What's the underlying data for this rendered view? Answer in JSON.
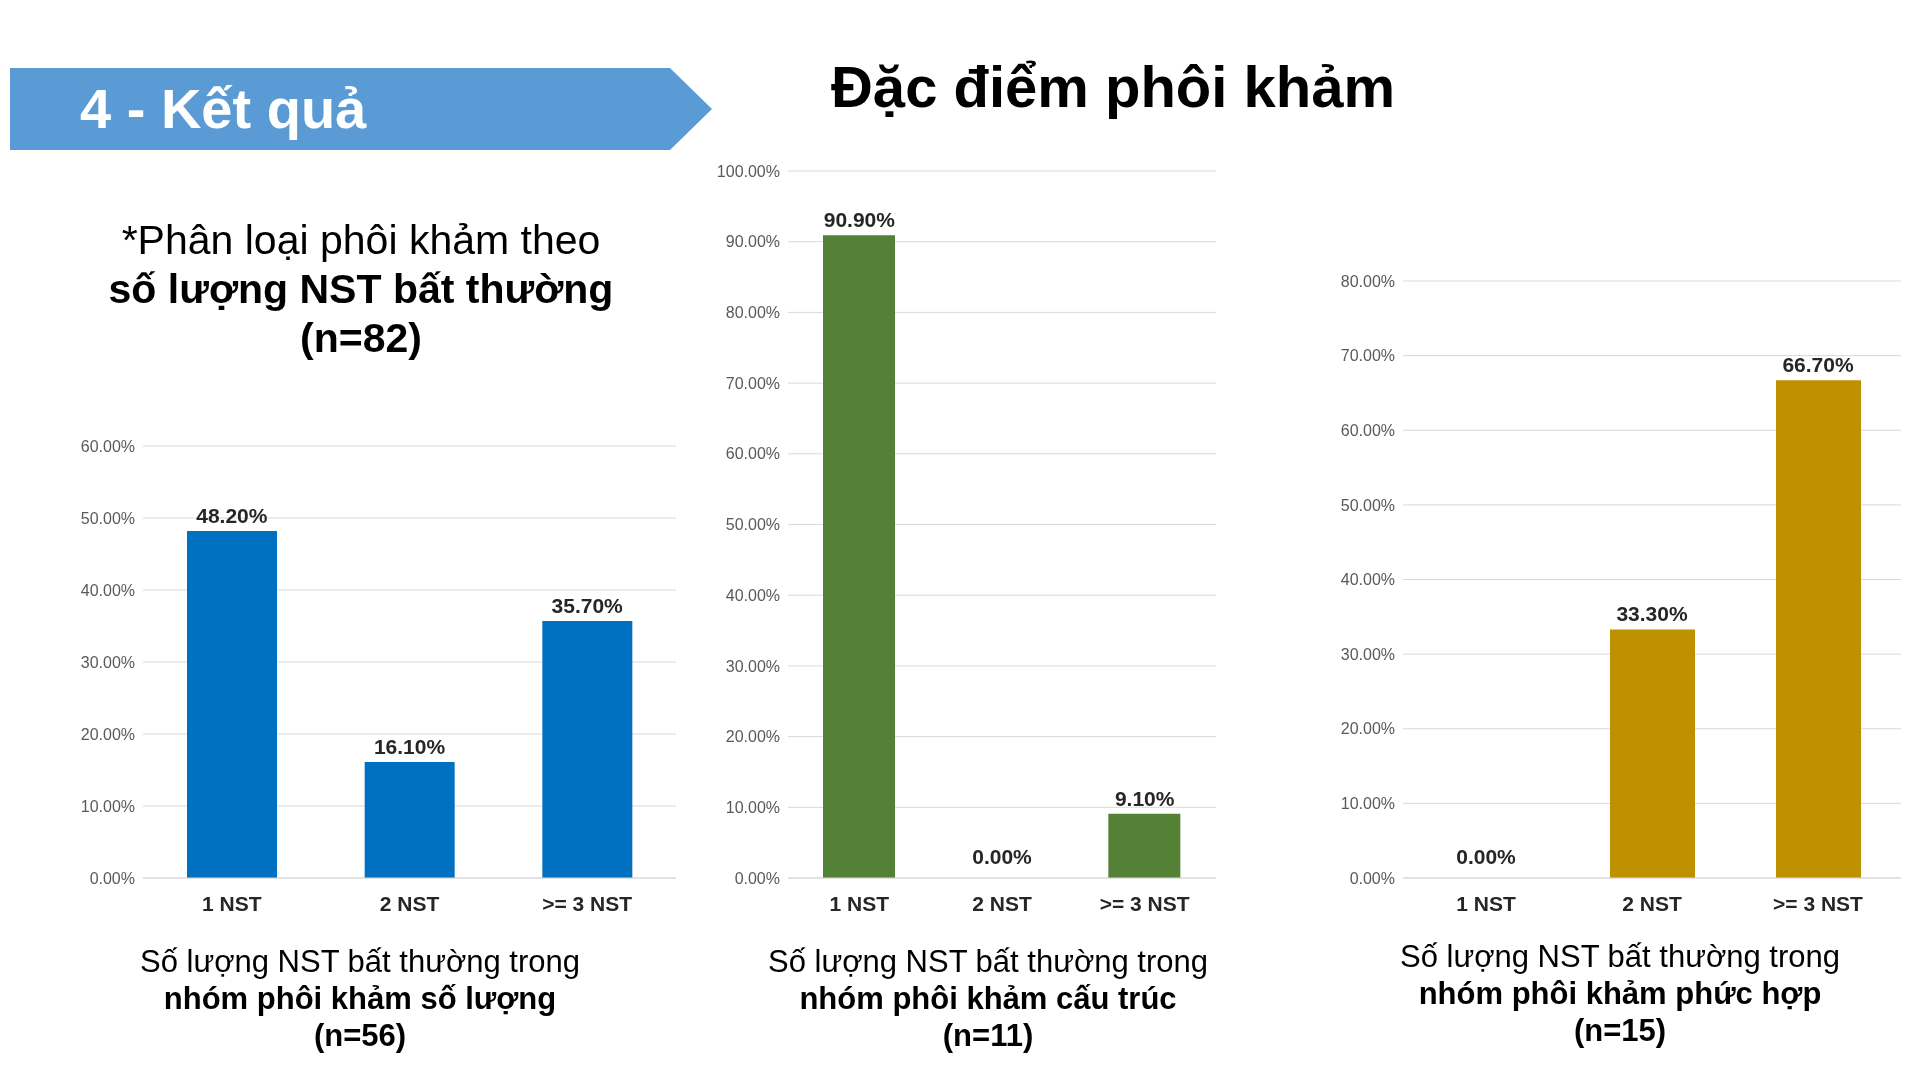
{
  "chart_data": [
    {
      "type": "bar",
      "annotations": [
        "4 - Kết quả",
        "*Phân loại phôi khảm theo\nsố lượng NST bất thường\n(n=82)"
      ],
      "categories": [
        "1 NST",
        "2 NST",
        ">= 3 NST"
      ],
      "values": [
        48.2,
        16.1,
        35.7
      ],
      "value_labels": [
        "48.20%",
        "16.10%",
        "35.70%"
      ],
      "color": "#0070c0",
      "ylim": [
        0,
        60
      ],
      "yticks": [
        {
          "value": 0,
          "label": "0.00%"
        },
        {
          "value": 10,
          "label": "10.00%"
        },
        {
          "value": 20,
          "label": "20.00%"
        },
        {
          "value": 30,
          "label": "30.00%"
        },
        {
          "value": 40,
          "label": "40.00%"
        },
        {
          "value": 50,
          "label": "50.00%"
        },
        {
          "value": 60,
          "label": "60.00%"
        }
      ],
      "grid": "y",
      "xlabel": "Số lượng NST bất thường trong\nnhóm phôi khảm số lượng\n(n=56)"
    },
    {
      "type": "bar",
      "title": "Đặc điểm phôi khảm",
      "categories": [
        "1 NST",
        "2 NST",
        ">= 3 NST"
      ],
      "values": [
        90.9,
        0,
        9.1
      ],
      "value_labels": [
        "90.90%",
        "0.00%",
        "9.10%"
      ],
      "color": "#538135",
      "ylim": [
        0,
        100
      ],
      "yticks": [
        {
          "value": 0,
          "label": "0.00%"
        },
        {
          "value": 10,
          "label": "10.00%"
        },
        {
          "value": 20,
          "label": "20.00%"
        },
        {
          "value": 30,
          "label": "30.00%"
        },
        {
          "value": 40,
          "label": "40.00%"
        },
        {
          "value": 50,
          "label": "50.00%"
        },
        {
          "value": 60,
          "label": "60.00%"
        },
        {
          "value": 70,
          "label": "70.00%"
        },
        {
          "value": 80,
          "label": "80.00%"
        },
        {
          "value": 90,
          "label": "90.00%"
        },
        {
          "value": 100,
          "label": "100.00%"
        }
      ],
      "grid": "y",
      "xlabel": "Số lượng NST bất thường trong\nnhóm phôi khảm cấu trúc\n(n=11)"
    },
    {
      "type": "bar",
      "categories": [
        "1 NST",
        "2 NST",
        ">= 3 NST"
      ],
      "values": [
        0,
        33.3,
        66.7
      ],
      "value_labels": [
        "0.00%",
        "33.30%",
        "66.70%"
      ],
      "color": "#bf9000",
      "ylim": [
        0,
        80
      ],
      "yticks": [
        {
          "value": 0,
          "label": "0.00%"
        },
        {
          "value": 10,
          "label": "10.00%"
        },
        {
          "value": 20,
          "label": "20.00%"
        },
        {
          "value": 30,
          "label": "30.00%"
        },
        {
          "value": 40,
          "label": "40.00%"
        },
        {
          "value": 50,
          "label": "50.00%"
        },
        {
          "value": 60,
          "label": "60.00%"
        },
        {
          "value": 70,
          "label": "70.00%"
        },
        {
          "value": 80,
          "label": "80.00%"
        }
      ],
      "grid": "y",
      "xlabel": "Số lượng NST bất thường trong\nnhóm phôi khảm phức hợp\n(n=15)"
    }
  ]
}
